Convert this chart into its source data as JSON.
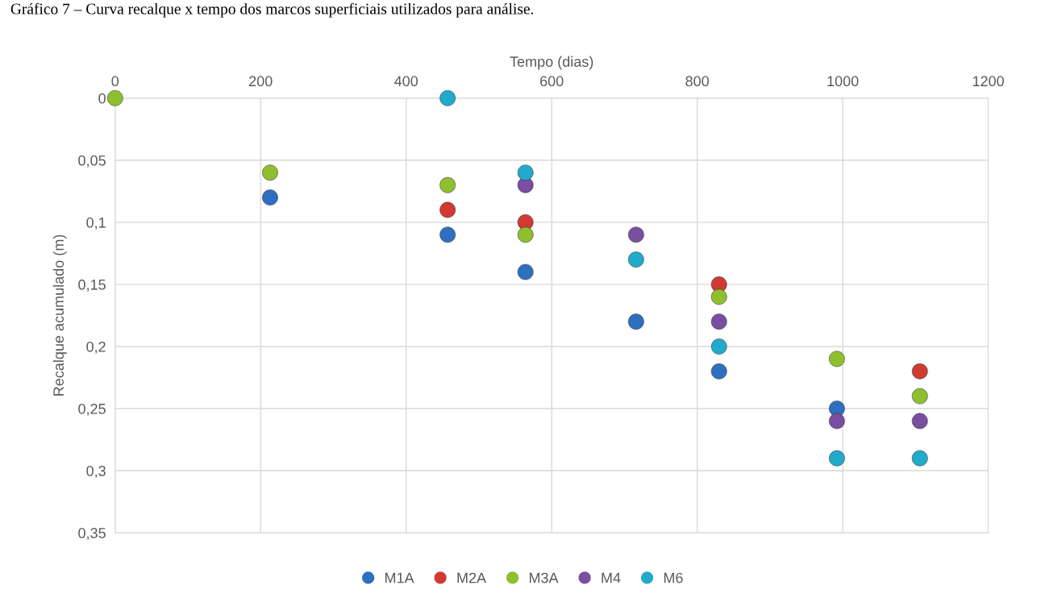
{
  "chart_data": {
    "type": "scatter",
    "title": "Gráfico 7 – Curva recalque x tempo dos marcos superficiais utilizados para análise.",
    "xlabel": "Tempo (dias)",
    "ylabel": "Recalque acumulado (m)",
    "x": [
      0,
      213,
      457,
      564,
      716,
      830,
      992,
      1106
    ],
    "series": [
      {
        "name": "M1A",
        "color": "#2e6fc0",
        "values": [
          null,
          0.08,
          0.11,
          0.14,
          0.18,
          0.22,
          0.25,
          null
        ]
      },
      {
        "name": "M2A",
        "color": "#d03a32",
        "values": [
          null,
          null,
          0.09,
          0.1,
          null,
          0.15,
          null,
          0.22
        ]
      },
      {
        "name": "M3A",
        "color": "#8fbf2e",
        "values": [
          0,
          0.06,
          0.07,
          0.11,
          null,
          0.16,
          0.21,
          0.24
        ]
      },
      {
        "name": "M4",
        "color": "#7a4ea0",
        "values": [
          null,
          null,
          null,
          0.07,
          0.11,
          0.18,
          0.26,
          0.26
        ]
      },
      {
        "name": "M6",
        "color": "#22aacc",
        "values": [
          null,
          null,
          0,
          0.06,
          0.13,
          0.2,
          0.29,
          0.29
        ]
      }
    ],
    "xlim": [
      0,
      1200
    ],
    "xticks": [
      0,
      200,
      400,
      600,
      800,
      1000,
      1200
    ],
    "ylim": [
      0.35,
      0
    ],
    "yticks": [
      0,
      {
        "value": 0.05,
        "label": "0,05"
      },
      {
        "value": 0.1,
        "label": "0,1"
      },
      {
        "value": 0.15,
        "label": "0,15"
      },
      {
        "value": 0.2,
        "label": "0,2"
      },
      {
        "value": 0.25,
        "label": "0,25"
      },
      {
        "value": 0.3,
        "label": "0,3"
      },
      {
        "value": 0.35,
        "label": "0,35"
      }
    ],
    "grid": true,
    "legend": "bottom",
    "marker": "circle"
  }
}
